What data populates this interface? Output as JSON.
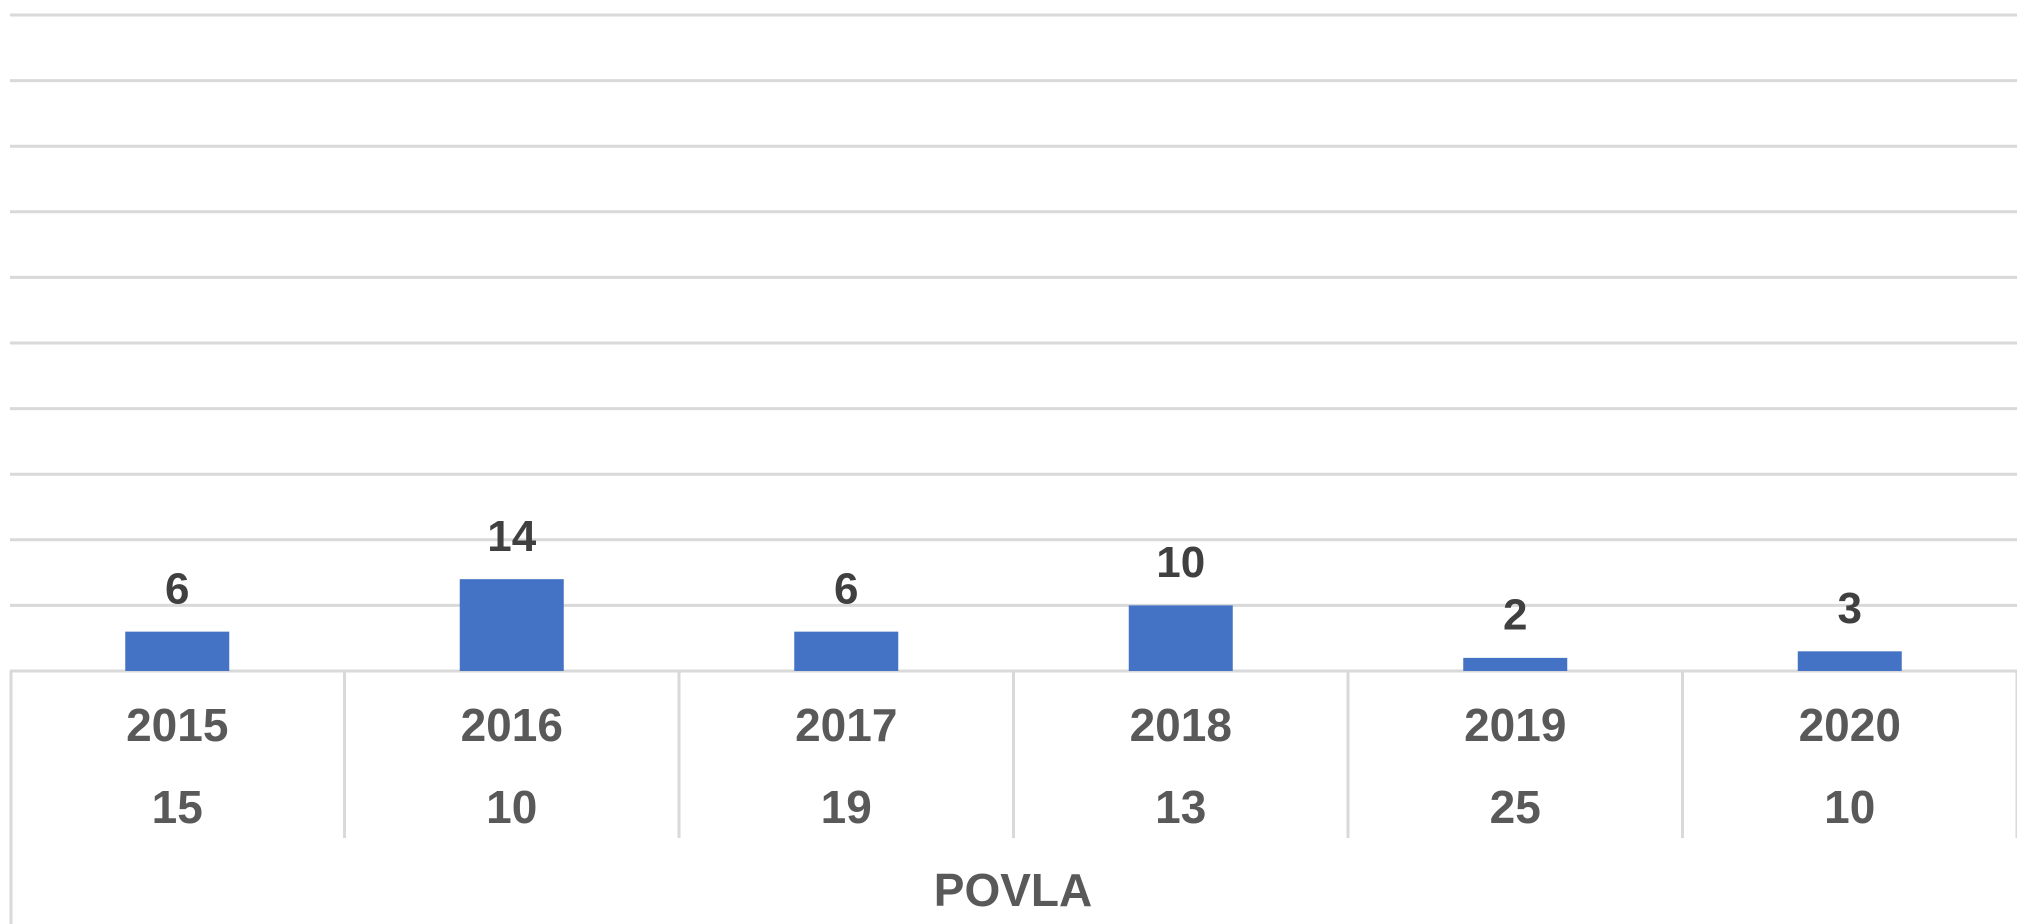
{
  "chart_data": {
    "type": "bar",
    "categories": [
      "2015",
      "2016",
      "2017",
      "2018",
      "2019",
      "2020"
    ],
    "sublabels": [
      "15",
      "10",
      "19",
      "13",
      "25",
      "10"
    ],
    "category_group": "POVLA",
    "values": [
      6,
      14,
      6,
      10,
      2,
      3
    ],
    "color": "#4472c4",
    "ylim": [
      0,
      100
    ],
    "yticks": [
      0,
      10,
      20,
      30,
      40,
      50,
      60,
      70,
      80,
      90,
      100
    ],
    "grid": true
  }
}
